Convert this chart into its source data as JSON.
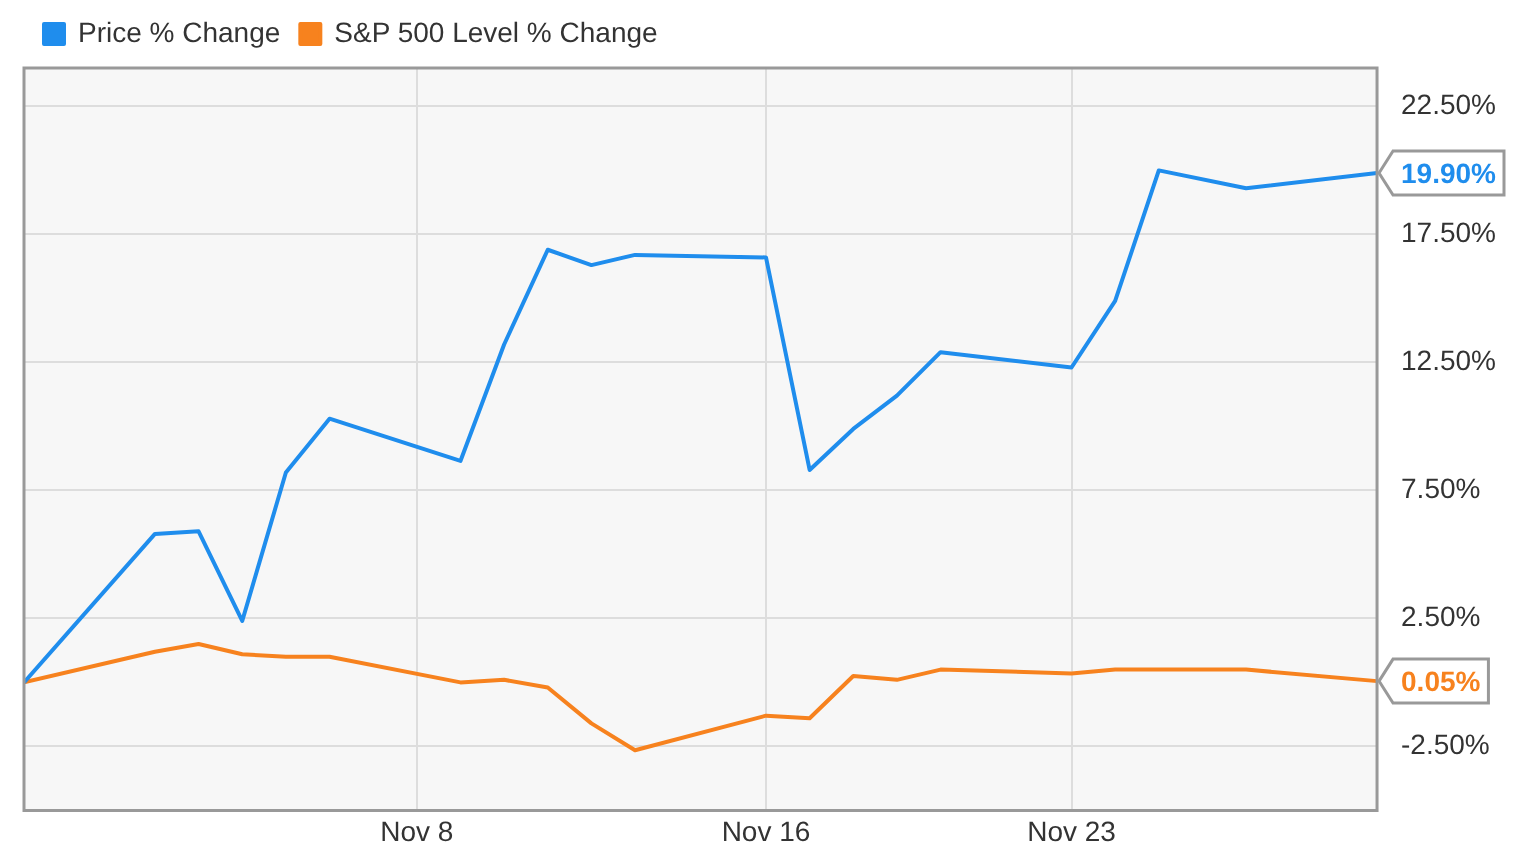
{
  "chart_data": {
    "type": "line",
    "x": [
      "--10-30",
      "--11-02",
      "--11-03",
      "--11-04",
      "--11-05",
      "--11-06",
      "--11-09",
      "--11-10",
      "--11-11",
      "--11-12",
      "--11-13",
      "--11-16",
      "--11-17",
      "--11-18",
      "--11-19",
      "--11-20",
      "--11-23",
      "--11-24",
      "--11-25",
      "--11-27",
      "--11-30"
    ],
    "series": [
      {
        "name": "Price % Change",
        "color": "#1f8ded",
        "values": [
          0,
          5.8,
          5.9,
          2.4,
          8.2,
          10.3,
          8.65,
          13.2,
          16.9,
          16.3,
          16.7,
          16.6,
          8.3,
          9.9,
          11.2,
          12.9,
          12.3,
          14.9,
          20.0,
          19.3,
          19.9
        ]
      },
      {
        "name": "S&P 500 Level % Change",
        "color": "#f7821e",
        "values": [
          0,
          1.2,
          1.5,
          1.1,
          1.0,
          1.0,
          0.0,
          0.1,
          -0.2,
          -1.6,
          -2.65,
          -1.3,
          -1.4,
          0.25,
          0.1,
          0.5,
          0.35,
          0.5,
          0.5,
          0.5,
          0.05
        ]
      }
    ],
    "xlim": [
      "--10-30",
      "--11-30"
    ],
    "xticks": [
      {
        "value": "--11-08",
        "label": "Nov 8"
      },
      {
        "value": "--11-16",
        "label": "Nov 16"
      },
      {
        "value": "--11-23",
        "label": "Nov 23"
      }
    ],
    "ylim": [
      -5,
      24
    ],
    "yticks": [
      {
        "value": -2.5,
        "label": "-2.50%"
      },
      {
        "value": 2.5,
        "label": "2.50%"
      },
      {
        "value": 7.5,
        "label": "7.50%"
      },
      {
        "value": 12.5,
        "label": "12.50%"
      },
      {
        "value": 17.5,
        "label": "17.50%"
      },
      {
        "value": 22.5,
        "label": "22.50%"
      }
    ],
    "annotations": [
      {
        "text": "19.90%",
        "x": "--11-30",
        "y": 19.9
      },
      {
        "text": "0.05%",
        "x": "--11-30",
        "y": 0.05
      }
    ],
    "grid": true,
    "legend": "top left",
    "marker": "none",
    "line_style": "solid"
  }
}
